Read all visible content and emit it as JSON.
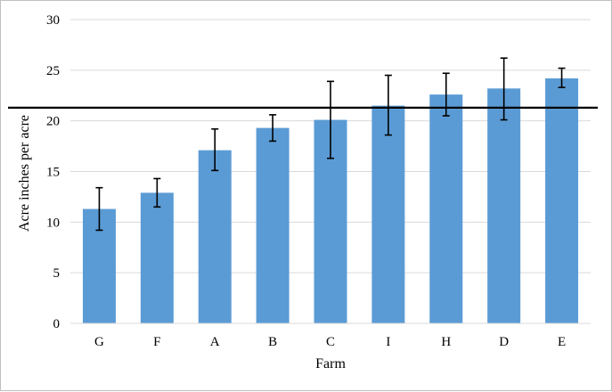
{
  "chart_data": {
    "type": "bar",
    "title": "",
    "xlabel": "Farm",
    "ylabel": "Acre inches per acre",
    "categories": [
      "G",
      "F",
      "A",
      "B",
      "C",
      "I",
      "H",
      "D",
      "E"
    ],
    "values": [
      11.3,
      12.9,
      17.1,
      19.3,
      20.1,
      21.5,
      22.6,
      23.2,
      24.2
    ],
    "error_low": [
      9.2,
      11.5,
      15.1,
      18.0,
      16.3,
      18.6,
      20.5,
      20.1,
      23.3
    ],
    "error_high": [
      13.4,
      14.3,
      19.2,
      20.6,
      23.9,
      24.5,
      24.7,
      26.2,
      25.2
    ],
    "ylim": [
      0,
      30
    ],
    "yticks": [
      "0",
      "5",
      "10",
      "15",
      "20",
      "25",
      "30"
    ],
    "reference_line": 21.3,
    "grid": true,
    "legend": "none",
    "colors": {
      "bar": "#5b9bd5",
      "reference": "#000000",
      "grid": "#d9d9d9",
      "error": "#000000"
    }
  }
}
